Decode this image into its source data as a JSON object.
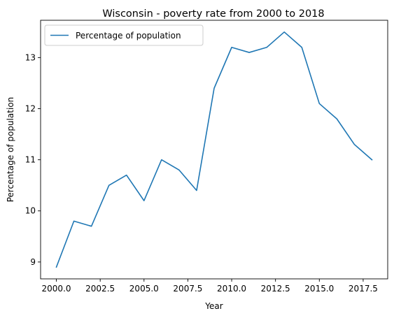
{
  "chart_data": {
    "type": "line",
    "title": "Wisconsin - poverty rate from 2000 to 2018",
    "xlabel": "Year",
    "ylabel": "Percentage of population",
    "x": [
      2000,
      2001,
      2002,
      2003,
      2004,
      2005,
      2006,
      2007,
      2008,
      2009,
      2010,
      2011,
      2012,
      2013,
      2014,
      2015,
      2016,
      2017,
      2018
    ],
    "series": [
      {
        "name": "Percentage of population",
        "color": "#1f77b4",
        "values": [
          8.9,
          9.8,
          9.7,
          10.5,
          10.7,
          10.2,
          11.0,
          10.8,
          10.4,
          12.4,
          13.2,
          13.1,
          13.2,
          13.5,
          13.2,
          12.1,
          11.8,
          11.3,
          11.0
        ]
      }
    ],
    "xlim": [
      1999.1,
      2018.9
    ],
    "ylim": [
      8.67,
      13.73
    ],
    "x_ticks": [
      2000.0,
      2002.5,
      2005.0,
      2007.5,
      2010.0,
      2012.5,
      2015.0,
      2017.5
    ],
    "x_tick_labels": [
      "2000.0",
      "2002.5",
      "2005.0",
      "2007.5",
      "2010.0",
      "2012.5",
      "2015.0",
      "2017.5"
    ],
    "y_ticks": [
      9,
      10,
      11,
      12,
      13
    ],
    "y_tick_labels": [
      "9",
      "10",
      "11",
      "12",
      "13"
    ],
    "grid": false,
    "legend_position": "top-left"
  }
}
